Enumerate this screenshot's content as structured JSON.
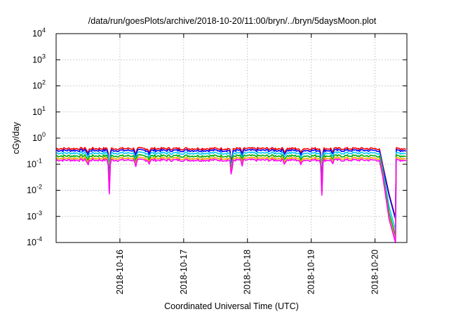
{
  "chart_data": {
    "type": "line",
    "title": "/data/run/goesPlots/archive/2018-10-20/11:00/bryn/../bryn/5daysMoon.plot",
    "xlabel": "Coordinated Universal Time (UTC)",
    "ylabel": "cGy/day",
    "y_scale": "log",
    "ylim": [
      0.0001,
      10000
    ],
    "xlim": [
      "2018-10-15T00:00",
      "2018-10-20T12:00"
    ],
    "grid": true,
    "legend": "none",
    "y_ticks": [
      {
        "base": "10",
        "exp": "-4",
        "value": 0.0001
      },
      {
        "base": "10",
        "exp": "-3",
        "value": 0.001
      },
      {
        "base": "10",
        "exp": "-2",
        "value": 0.01
      },
      {
        "base": "10",
        "exp": "-1",
        "value": 0.1
      },
      {
        "base": "10",
        "exp": "0",
        "value": 1
      },
      {
        "base": "10",
        "exp": "1",
        "value": 10
      },
      {
        "base": "10",
        "exp": "2",
        "value": 100
      },
      {
        "base": "10",
        "exp": "3",
        "value": 1000
      },
      {
        "base": "10",
        "exp": "4",
        "value": 10000
      }
    ],
    "x_ticks": [
      "2018-10-16",
      "2018-10-17",
      "2018-10-18",
      "2018-10-19",
      "2018-10-20"
    ],
    "dips": [
      {
        "time": "2018-10-15T12:00",
        "factor": 0.6
      },
      {
        "time": "2018-10-15T20:00",
        "factor": 0.05
      },
      {
        "time": "2018-10-16T06:00",
        "factor": 0.6
      },
      {
        "time": "2018-10-16T11:00",
        "factor": 0.75
      },
      {
        "time": "2018-10-17T18:00",
        "factor": 0.02
      },
      {
        "time": "2018-10-17T22:00",
        "factor": 0.6
      },
      {
        "time": "2018-10-18T14:00",
        "factor": 0.7
      },
      {
        "time": "2018-10-18T20:00",
        "factor": 0.6
      },
      {
        "time": "2018-10-19T04:00",
        "factor": 0.05
      },
      {
        "time": "2018-10-19T08:00",
        "factor": 0.7
      }
    ],
    "gap": {
      "start": "2018-10-20T02:00",
      "end": "2018-10-20T08:00"
    },
    "series": [
      {
        "color": "#ff0000",
        "base": 0.4
      },
      {
        "color": "#0000ff",
        "base": 0.34
      },
      {
        "color": "#00c8ff",
        "base": 0.27
      },
      {
        "color": "#00aa00",
        "base": 0.21
      },
      {
        "color": "#ffa500",
        "base": 0.17
      },
      {
        "color": "#ff00ff",
        "base": 0.145
      }
    ],
    "gap_end_values": [
      0.0009,
      0.0008,
      0.0003,
      0.00018,
      0.00012,
      0.0001
    ]
  }
}
